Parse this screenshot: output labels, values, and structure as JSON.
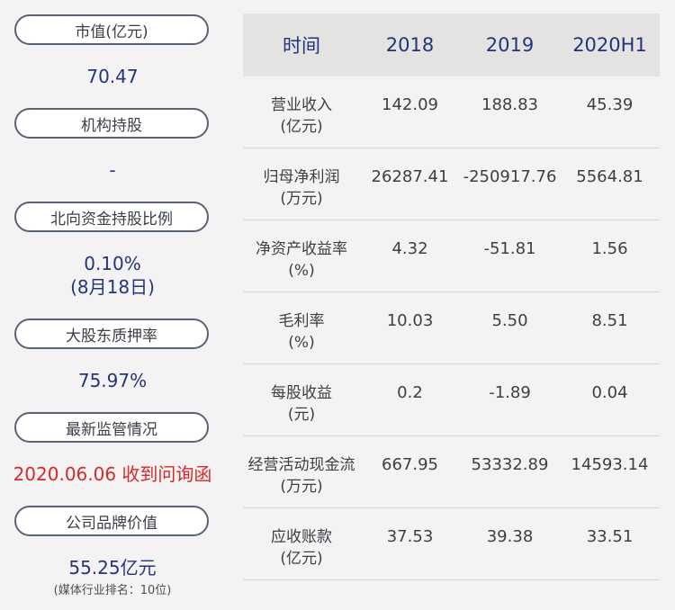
{
  "left": {
    "items": [
      {
        "label": "市值(亿元)",
        "value": "70.47"
      },
      {
        "label": "机构持股",
        "value": "-"
      },
      {
        "label": "北向资金持股比例",
        "value": "0.10%",
        "value2": "(8月18日)"
      },
      {
        "label": "大股东质押率",
        "value": "75.97%"
      },
      {
        "label": "最新监管情况",
        "value": "2020.06.06 收到问询函"
      },
      {
        "label": "公司品牌价值",
        "value": "55.25亿元",
        "note": "(媒体行业排名：10位)"
      }
    ],
    "colors": {
      "value": "#24357a",
      "alert": "#d42a2a"
    }
  },
  "table": {
    "headers": [
      "时间",
      "2018",
      "2019",
      "2020H1"
    ],
    "rows": [
      {
        "name": "营业收入",
        "unit": "(亿元)",
        "values": [
          "142.09",
          "188.83",
          "45.39"
        ]
      },
      {
        "name": "归母净利润",
        "unit": "(万元)",
        "values": [
          "26287.41",
          "-250917.76",
          "5564.81"
        ]
      },
      {
        "name": "净资产收益率",
        "unit": "(%)",
        "values": [
          "4.32",
          "-51.81",
          "1.56"
        ]
      },
      {
        "name": "毛利率",
        "unit": "(%)",
        "values": [
          "10.03",
          "5.50",
          "8.51"
        ]
      },
      {
        "name": "每股收益",
        "unit": "(元)",
        "values": [
          "0.2",
          "-1.89",
          "0.04"
        ]
      },
      {
        "name": "经营活动现金流",
        "unit": "(万元)",
        "values": [
          "667.95",
          "53332.89",
          "14593.14"
        ]
      },
      {
        "name": "应收账款",
        "unit": "(亿元)",
        "values": [
          "37.53",
          "39.38",
          "33.51"
        ]
      }
    ]
  }
}
